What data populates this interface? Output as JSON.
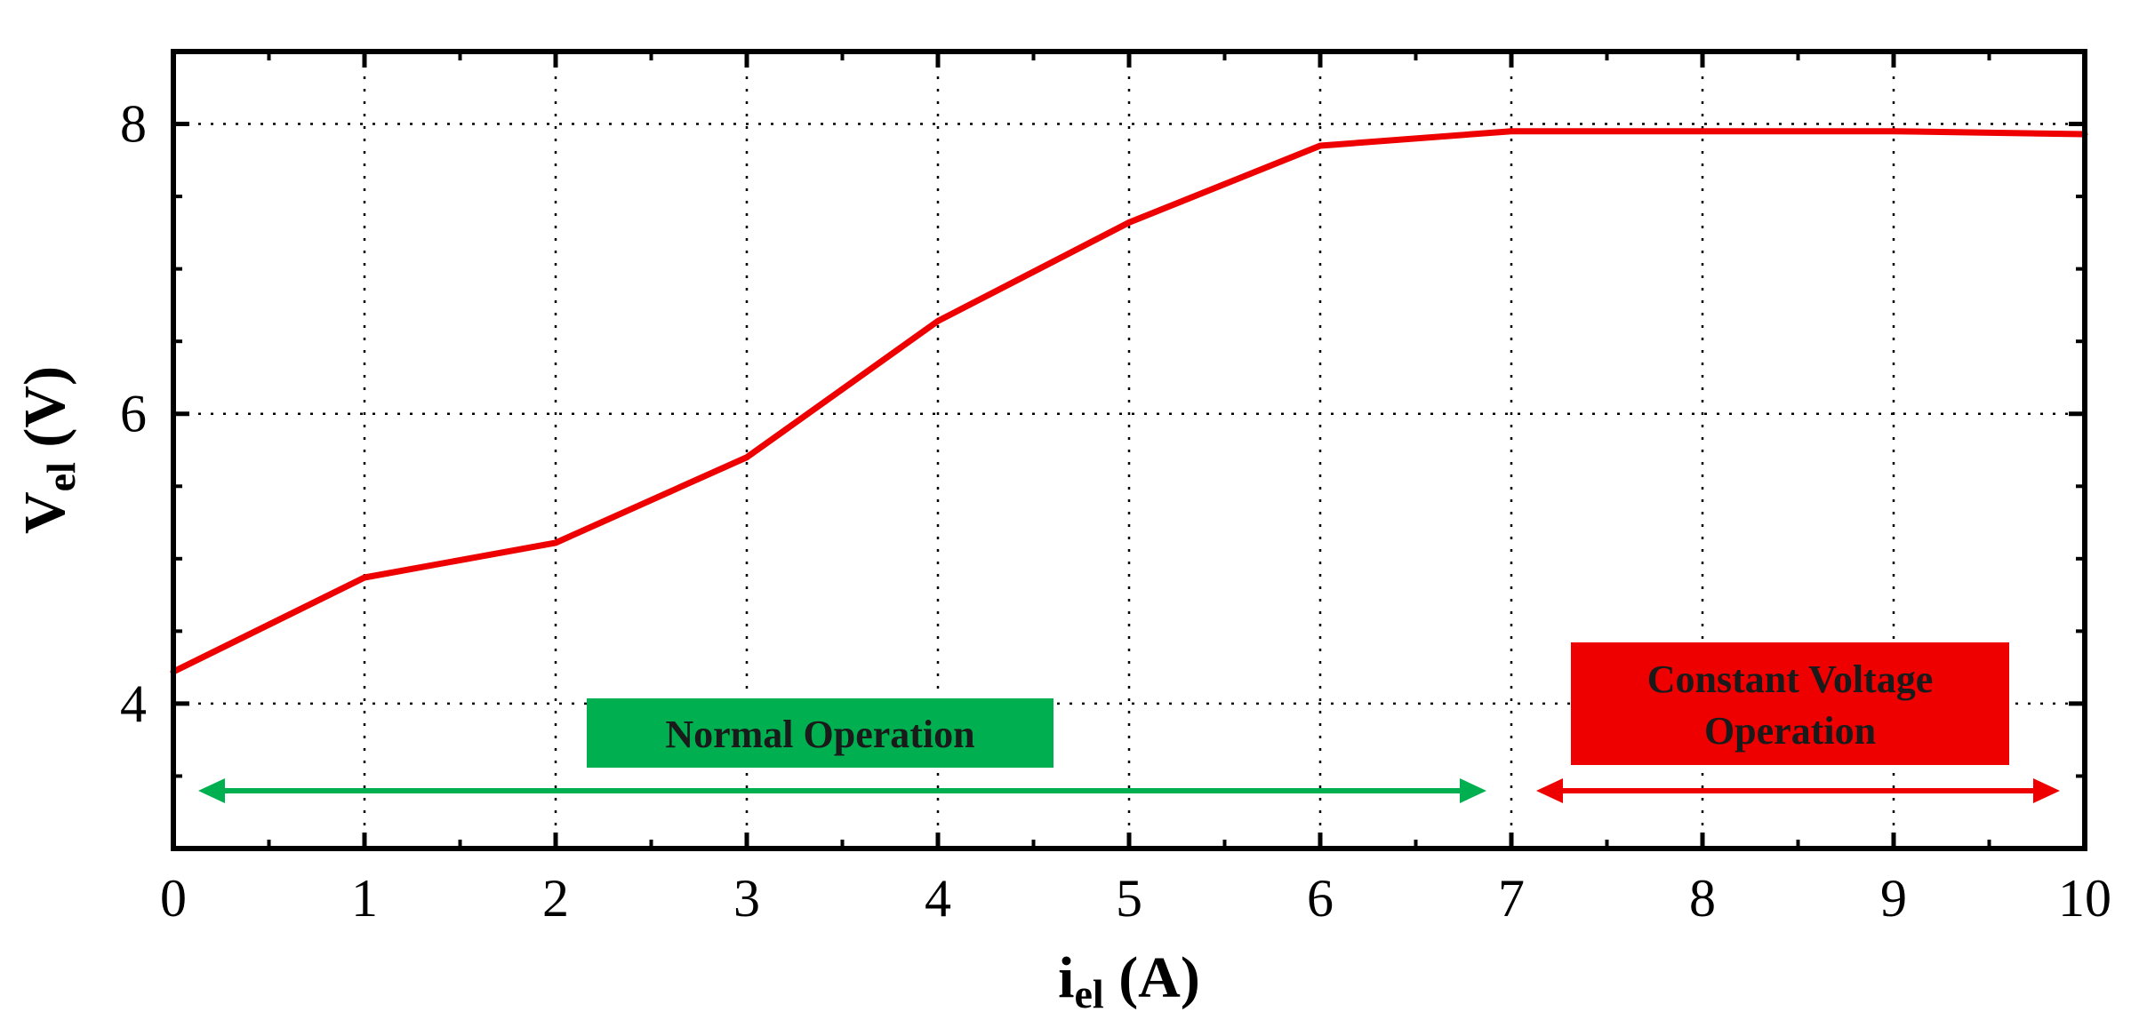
{
  "chart_data": {
    "type": "line",
    "x_axis": {
      "label_main": "i",
      "label_sub": "el",
      "label_unit": " (A)",
      "ticks": [
        0,
        1,
        2,
        3,
        4,
        5,
        6,
        7,
        8,
        9,
        10
      ],
      "tick_labels": [
        "0",
        "1",
        "2",
        "3",
        "4",
        "5",
        "6",
        "7",
        "8",
        "9",
        "10"
      ],
      "range": [
        0,
        10
      ]
    },
    "y_axis": {
      "label_main": "V",
      "label_sub": "el",
      "label_unit": " (V)",
      "ticks": [
        4,
        6,
        8
      ],
      "tick_labels": [
        "4",
        "6",
        "8"
      ],
      "range": [
        3,
        8.5
      ]
    },
    "grid": true,
    "grid_style": "dotted",
    "series": [
      {
        "color": "#ee0000",
        "x": [
          0,
          1,
          2,
          3,
          4,
          5,
          6,
          7,
          8,
          9,
          10
        ],
        "y": [
          4.22,
          4.87,
          5.11,
          5.7,
          6.64,
          7.32,
          7.85,
          7.95,
          7.95,
          7.95,
          7.93
        ]
      }
    ],
    "regions": [
      {
        "label_lines": [
          "Normal Operation"
        ],
        "x_start": 0,
        "x_end": 7,
        "color": "#00b050",
        "text_color": "#1a1a1a"
      },
      {
        "label_lines": [
          "Constant Voltage",
          "Operation"
        ],
        "x_start": 7,
        "x_end": 10,
        "color": "#ee0000",
        "text_color": "#1a1a1a"
      }
    ]
  }
}
